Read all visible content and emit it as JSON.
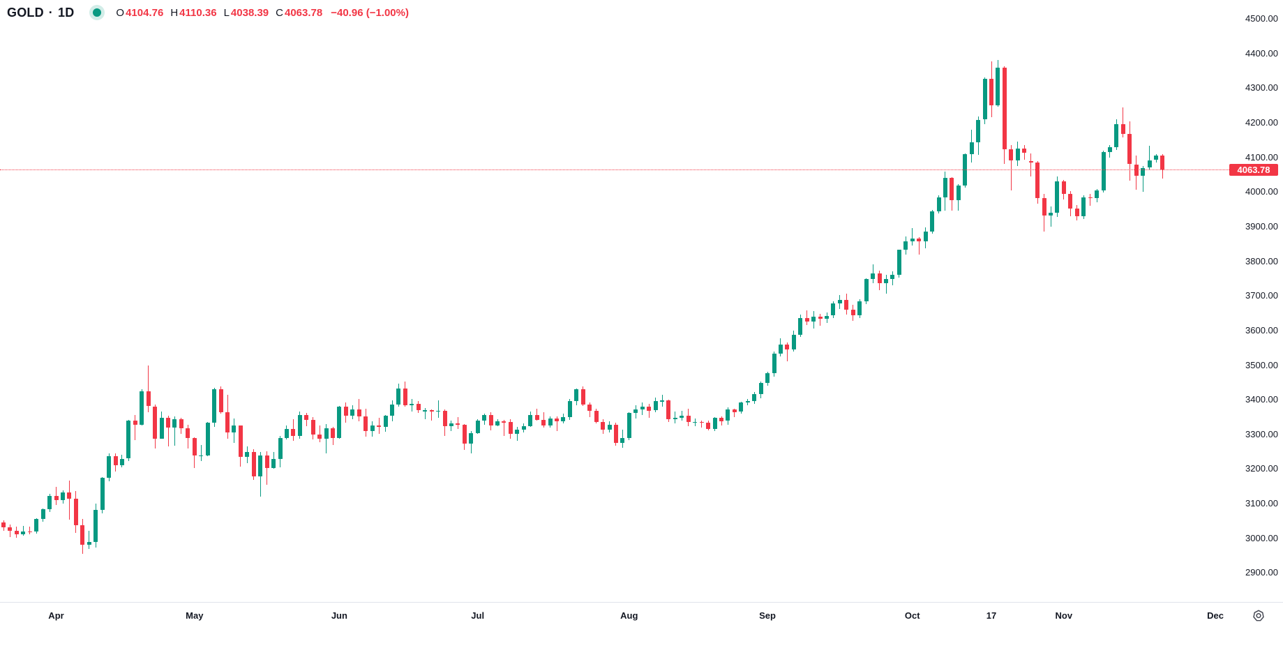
{
  "header": {
    "symbol": "GOLD",
    "separator": "·",
    "timeframe": "1D",
    "ohlc": {
      "open_label": "O",
      "open": "4104.76",
      "high_label": "H",
      "high": "4110.36",
      "low_label": "L",
      "low": "4038.39",
      "close_label": "C",
      "close": "4063.78",
      "change": "−40.96 (−1.00%)"
    }
  },
  "colors": {
    "up": "#089981",
    "down": "#f23645",
    "text": "#131722",
    "last_price": "#f23645",
    "badge_bg": "#f23645",
    "badge_text": "#ffffff",
    "axis_separator": "#e0e3eb",
    "status_dot": "#089981"
  },
  "price_axis": {
    "labels": [
      "4500.00",
      "4400.00",
      "4300.00",
      "4200.00",
      "4100.00",
      "4000.00",
      "3900.00",
      "3800.00",
      "3700.00",
      "3600.00",
      "3500.00",
      "3400.00",
      "3300.00",
      "3200.00",
      "3100.00",
      "3000.00",
      "2900.00"
    ],
    "badge": "4063.78"
  },
  "time_axis": {
    "labels": [
      {
        "text": "Apr",
        "index": 8
      },
      {
        "text": "May",
        "index": 29
      },
      {
        "text": "Jun",
        "index": 51
      },
      {
        "text": "Jul",
        "index": 72
      },
      {
        "text": "Aug",
        "index": 95
      },
      {
        "text": "Sep",
        "index": 116
      },
      {
        "text": "Oct",
        "index": 138
      },
      {
        "text": "17",
        "index": 150
      },
      {
        "text": "Nov",
        "index": 161
      },
      {
        "text": "Dec",
        "index": 184
      }
    ]
  },
  "chart_data": {
    "type": "candlestick",
    "title": "GOLD · 1D",
    "symbol": "GOLD",
    "timeframe": "1D",
    "last_price": 4063.78,
    "change": -40.96,
    "change_pct": -1.0,
    "price_axis_range": [
      2900,
      4500
    ],
    "visible_months": [
      "Apr",
      "May",
      "Jun",
      "Jul",
      "Aug",
      "Sep",
      "Oct",
      "Nov"
    ],
    "candles_ohlc": [
      [
        3045,
        3052,
        3022,
        3031
      ],
      [
        3031,
        3040,
        3003,
        3022
      ],
      [
        3022,
        3033,
        3001,
        3011
      ],
      [
        3011,
        3036,
        3008,
        3020
      ],
      [
        3020,
        3033,
        3012,
        3019
      ],
      [
        3019,
        3059,
        3013,
        3056
      ],
      [
        3056,
        3086,
        3048,
        3084
      ],
      [
        3084,
        3128,
        3076,
        3123
      ],
      [
        3123,
        3149,
        3097,
        3110
      ],
      [
        3110,
        3139,
        3100,
        3133
      ],
      [
        3133,
        3167,
        3054,
        3115
      ],
      [
        3115,
        3136,
        3015,
        3038
      ],
      [
        3038,
        3055,
        2956,
        2982
      ],
      [
        2982,
        3022,
        2970,
        2990
      ],
      [
        2990,
        3100,
        2973,
        3082
      ],
      [
        3082,
        3176,
        3071,
        3175
      ],
      [
        3175,
        3245,
        3164,
        3238
      ],
      [
        3238,
        3245,
        3193,
        3211
      ],
      [
        3211,
        3242,
        3204,
        3230
      ],
      [
        3230,
        3343,
        3223,
        3339
      ],
      [
        3339,
        3357,
        3283,
        3327
      ],
      [
        3327,
        3430,
        3325,
        3425
      ],
      [
        3425,
        3500,
        3365,
        3381
      ],
      [
        3381,
        3386,
        3260,
        3288
      ],
      [
        3288,
        3367,
        3287,
        3349
      ],
      [
        3349,
        3354,
        3265,
        3319
      ],
      [
        3319,
        3352,
        3268,
        3345
      ],
      [
        3345,
        3348,
        3301,
        3317
      ],
      [
        3317,
        3328,
        3260,
        3289
      ],
      [
        3289,
        3291,
        3202,
        3239
      ],
      [
        3239,
        3269,
        3222,
        3240
      ],
      [
        3240,
        3336,
        3237,
        3333
      ],
      [
        3333,
        3435,
        3322,
        3430
      ],
      [
        3430,
        3438,
        3360,
        3364
      ],
      [
        3364,
        3415,
        3288,
        3306
      ],
      [
        3306,
        3347,
        3275,
        3325
      ],
      [
        3325,
        3325,
        3207,
        3236
      ],
      [
        3236,
        3266,
        3216,
        3250
      ],
      [
        3250,
        3257,
        3168,
        3178
      ],
      [
        3178,
        3249,
        3120,
        3240
      ],
      [
        3240,
        3252,
        3154,
        3203
      ],
      [
        3203,
        3249,
        3201,
        3230
      ],
      [
        3230,
        3295,
        3204,
        3290
      ],
      [
        3290,
        3325,
        3285,
        3315
      ],
      [
        3315,
        3345,
        3281,
        3295
      ],
      [
        3295,
        3366,
        3287,
        3357
      ],
      [
        3357,
        3362,
        3323,
        3343
      ],
      [
        3343,
        3350,
        3285,
        3300
      ],
      [
        3300,
        3325,
        3277,
        3288
      ],
      [
        3288,
        3330,
        3245,
        3317
      ],
      [
        3317,
        3322,
        3270,
        3289
      ],
      [
        3289,
        3382,
        3288,
        3380
      ],
      [
        3380,
        3392,
        3334,
        3353
      ],
      [
        3353,
        3384,
        3343,
        3372
      ],
      [
        3372,
        3403,
        3338,
        3352
      ],
      [
        3352,
        3375,
        3293,
        3310
      ],
      [
        3310,
        3337,
        3293,
        3325
      ],
      [
        3325,
        3349,
        3302,
        3322
      ],
      [
        3322,
        3357,
        3308,
        3354
      ],
      [
        3354,
        3398,
        3337,
        3386
      ],
      [
        3386,
        3446,
        3381,
        3432
      ],
      [
        3432,
        3452,
        3381,
        3385
      ],
      [
        3385,
        3403,
        3366,
        3389
      ],
      [
        3389,
        3396,
        3362,
        3369
      ],
      [
        3369,
        3377,
        3344,
        3370
      ],
      [
        3370,
        3372,
        3340,
        3368
      ],
      [
        3368,
        3398,
        3347,
        3369
      ],
      [
        3369,
        3372,
        3295,
        3323
      ],
      [
        3323,
        3340,
        3310,
        3332
      ],
      [
        3332,
        3350,
        3315,
        3328
      ],
      [
        3328,
        3330,
        3255,
        3274
      ],
      [
        3274,
        3310,
        3246,
        3303
      ],
      [
        3303,
        3344,
        3301,
        3339
      ],
      [
        3339,
        3360,
        3328,
        3357
      ],
      [
        3357,
        3365,
        3312,
        3326
      ],
      [
        3326,
        3345,
        3323,
        3337
      ],
      [
        3337,
        3342,
        3296,
        3336
      ],
      [
        3336,
        3345,
        3287,
        3301
      ],
      [
        3301,
        3322,
        3282,
        3313
      ],
      [
        3313,
        3331,
        3306,
        3323
      ],
      [
        3323,
        3367,
        3321,
        3356
      ],
      [
        3356,
        3374,
        3339,
        3343
      ],
      [
        3343,
        3365,
        3320,
        3325
      ],
      [
        3325,
        3352,
        3319,
        3347
      ],
      [
        3347,
        3352,
        3309,
        3339
      ],
      [
        3339,
        3360,
        3331,
        3350
      ],
      [
        3350,
        3402,
        3342,
        3397
      ],
      [
        3397,
        3433,
        3384,
        3430
      ],
      [
        3430,
        3439,
        3382,
        3387
      ],
      [
        3387,
        3393,
        3350,
        3368
      ],
      [
        3368,
        3374,
        3331,
        3336
      ],
      [
        3336,
        3345,
        3301,
        3314
      ],
      [
        3314,
        3337,
        3306,
        3328
      ],
      [
        3328,
        3334,
        3268,
        3275
      ],
      [
        3275,
        3313,
        3262,
        3290
      ],
      [
        3290,
        3365,
        3283,
        3363
      ],
      [
        3363,
        3385,
        3346,
        3373
      ],
      [
        3373,
        3392,
        3355,
        3380
      ],
      [
        3380,
        3388,
        3347,
        3369
      ],
      [
        3369,
        3407,
        3365,
        3397
      ],
      [
        3397,
        3415,
        3381,
        3398
      ],
      [
        3398,
        3400,
        3336,
        3344
      ],
      [
        3344,
        3366,
        3331,
        3348
      ],
      [
        3348,
        3369,
        3340,
        3355
      ],
      [
        3355,
        3374,
        3324,
        3335
      ],
      [
        3335,
        3347,
        3323,
        3336
      ],
      [
        3336,
        3340,
        3320,
        3334
      ],
      [
        3334,
        3339,
        3311,
        3316
      ],
      [
        3316,
        3350,
        3310,
        3348
      ],
      [
        3348,
        3352,
        3325,
        3339
      ],
      [
        3339,
        3378,
        3328,
        3372
      ],
      [
        3372,
        3375,
        3350,
        3365
      ],
      [
        3365,
        3395,
        3360,
        3393
      ],
      [
        3393,
        3403,
        3384,
        3397
      ],
      [
        3397,
        3423,
        3388,
        3417
      ],
      [
        3417,
        3453,
        3405,
        3448
      ],
      [
        3448,
        3480,
        3440,
        3476
      ],
      [
        3476,
        3540,
        3467,
        3533
      ],
      [
        3533,
        3578,
        3526,
        3560
      ],
      [
        3560,
        3565,
        3511,
        3546
      ],
      [
        3546,
        3600,
        3540,
        3587
      ],
      [
        3587,
        3646,
        3582,
        3636
      ],
      [
        3636,
        3659,
        3615,
        3626
      ],
      [
        3626,
        3657,
        3605,
        3641
      ],
      [
        3641,
        3649,
        3613,
        3634
      ],
      [
        3634,
        3652,
        3621,
        3643
      ],
      [
        3643,
        3685,
        3635,
        3679
      ],
      [
        3679,
        3703,
        3663,
        3689
      ],
      [
        3689,
        3707,
        3646,
        3660
      ],
      [
        3660,
        3674,
        3627,
        3644
      ],
      [
        3644,
        3690,
        3636,
        3685
      ],
      [
        3685,
        3750,
        3677,
        3748
      ],
      [
        3748,
        3791,
        3737,
        3764
      ],
      [
        3764,
        3773,
        3717,
        3736
      ],
      [
        3736,
        3760,
        3706,
        3749
      ],
      [
        3749,
        3771,
        3731,
        3760
      ],
      [
        3760,
        3834,
        3753,
        3833
      ],
      [
        3833,
        3872,
        3820,
        3858
      ],
      [
        3858,
        3895,
        3845,
        3866
      ],
      [
        3866,
        3870,
        3820,
        3857
      ],
      [
        3857,
        3897,
        3837,
        3886
      ],
      [
        3886,
        3949,
        3880,
        3944
      ],
      [
        3944,
        3990,
        3937,
        3984
      ],
      [
        3984,
        4059,
        3947,
        4041
      ],
      [
        4041,
        4043,
        3946,
        3976
      ],
      [
        3976,
        4022,
        3945,
        4018
      ],
      [
        4018,
        4111,
        4012,
        4110
      ],
      [
        4110,
        4180,
        4085,
        4143
      ],
      [
        4143,
        4218,
        4107,
        4209
      ],
      [
        4209,
        4330,
        4195,
        4326
      ],
      [
        4326,
        4378,
        4216,
        4251
      ],
      [
        4251,
        4381,
        4247,
        4359
      ],
      [
        4359,
        4364,
        4082,
        4124
      ],
      [
        4124,
        4135,
        4004,
        4091
      ],
      [
        4091,
        4145,
        4075,
        4126
      ],
      [
        4126,
        4135,
        4093,
        4113
      ],
      [
        4090,
        4112,
        4044,
        4086
      ],
      [
        4086,
        4090,
        3966,
        3983
      ],
      [
        3983,
        3995,
        3886,
        3932
      ],
      [
        3932,
        3959,
        3900,
        3940
      ],
      [
        3940,
        4045,
        3928,
        4030
      ],
      [
        4030,
        4035,
        3978,
        3994
      ],
      [
        3994,
        4002,
        3929,
        3953
      ],
      [
        3953,
        3962,
        3918,
        3929
      ],
      [
        3929,
        3991,
        3922,
        3985
      ],
      [
        3985,
        3995,
        3960,
        3982
      ],
      [
        3982,
        4008,
        3970,
        4004
      ],
      [
        4004,
        4120,
        3999,
        4115
      ],
      [
        4115,
        4135,
        4100,
        4129
      ],
      [
        4129,
        4211,
        4121,
        4195
      ],
      [
        4195,
        4245,
        4158,
        4168
      ],
      [
        4168,
        4205,
        4032,
        4080
      ],
      [
        4080,
        4106,
        4006,
        4046
      ],
      [
        4046,
        4075,
        4000,
        4070
      ],
      [
        4070,
        4134,
        4062,
        4092
      ],
      [
        4092,
        4110,
        4085,
        4104.74
      ],
      [
        4104.76,
        4110.36,
        4038.39,
        4063.78
      ]
    ]
  }
}
